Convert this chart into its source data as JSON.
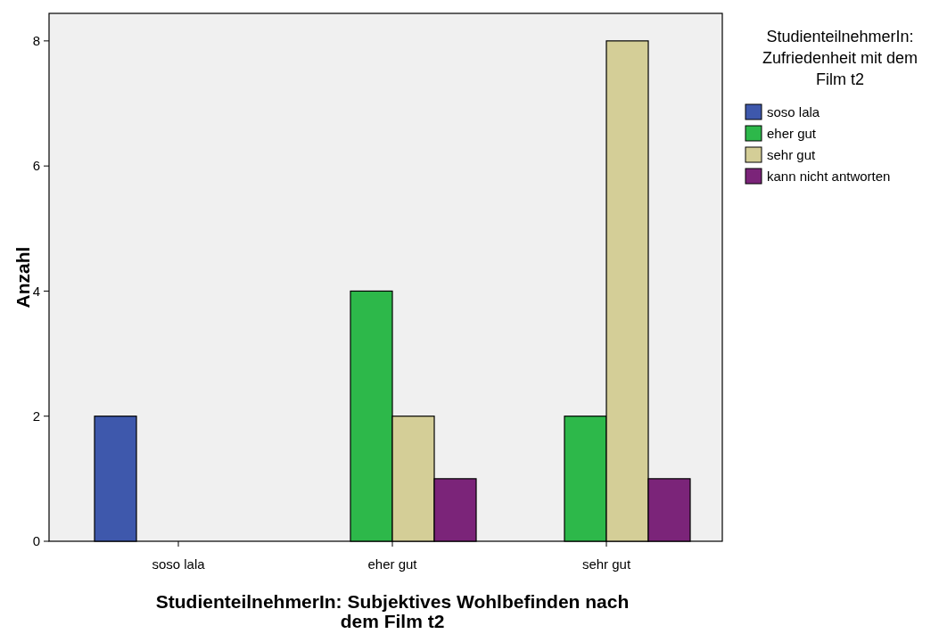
{
  "chart_data": {
    "type": "bar",
    "xlabel": "StudienteilnehmerIn: Subjektives Wohlbefinden nach dem Film t2",
    "ylabel": "Anzahl",
    "legend_title": "StudienteilnehmerIn: Zufriedenheit mit dem Film t2",
    "legend": "right",
    "grid": false,
    "categories": [
      "soso lala",
      "eher gut",
      "sehr gut"
    ],
    "ylim": [
      0,
      8.44
    ],
    "yticks": [
      0,
      2,
      4,
      6,
      8
    ],
    "series": [
      {
        "name": "soso lala",
        "color": "#3e58ac",
        "values": [
          2,
          0,
          0
        ]
      },
      {
        "name": "eher gut",
        "color": "#2db84a",
        "values": [
          0,
          4,
          2
        ]
      },
      {
        "name": "sehr gut",
        "color": "#d4ce97",
        "values": [
          0,
          2,
          8
        ]
      },
      {
        "name": "kann nicht antworten",
        "color": "#7b2479",
        "values": [
          0,
          1,
          1
        ]
      }
    ]
  }
}
